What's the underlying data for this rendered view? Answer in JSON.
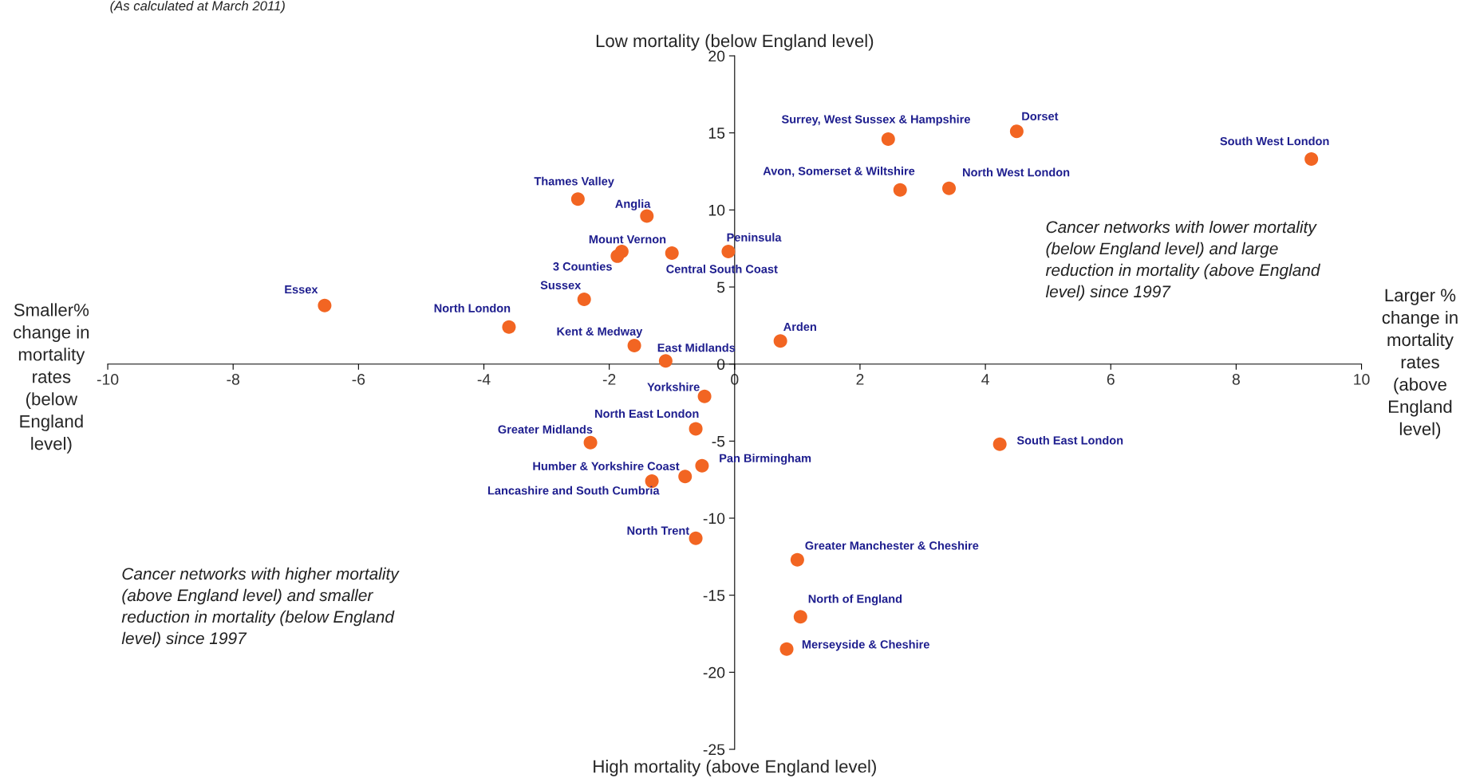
{
  "chart_data": {
    "type": "scatter",
    "title": "Low mortality (below England level)",
    "xlabel": "High mortality (above England level)",
    "ylabel": "Smaller% change in mortality rates (below England level)",
    "xlim": [
      -10,
      10
    ],
    "ylim": [
      -25,
      20
    ],
    "xticks": [
      -10,
      -8,
      -6,
      -4,
      -2,
      0,
      2,
      4,
      6,
      8,
      10
    ],
    "yticks": [
      -25,
      -20,
      -15,
      -10,
      -5,
      0,
      5,
      10,
      15,
      20
    ],
    "grid": false,
    "legend": false,
    "marker": "circle",
    "series": [
      {
        "name": "Essex",
        "color": "#f26522",
        "x": [
          -6.54
        ],
        "values": [
          3.8
        ]
      },
      {
        "name": "North London",
        "color": "#f26522",
        "x": [
          -3.6
        ],
        "values": [
          2.4
        ]
      },
      {
        "name": "Thames Valley",
        "color": "#f26522",
        "x": [
          -2.5
        ],
        "values": [
          10.7
        ]
      },
      {
        "name": "Anglia",
        "color": "#f26522",
        "x": [
          -1.4
        ],
        "values": [
          9.6
        ]
      },
      {
        "name": "Mount Vernon",
        "color": "#f26522",
        "x": [
          -1.8
        ],
        "values": [
          7.3
        ]
      },
      {
        "name": "3 Counties",
        "color": "#f26522",
        "x": [
          -1.87
        ],
        "values": [
          7.0
        ]
      },
      {
        "name": "Central South Coast",
        "color": "#f26522",
        "x": [
          -1.0
        ],
        "values": [
          7.2
        ]
      },
      {
        "name": "Peninsula",
        "color": "#f26522",
        "x": [
          -0.1
        ],
        "values": [
          7.3
        ]
      },
      {
        "name": "Sussex",
        "color": "#f26522",
        "x": [
          -2.4
        ],
        "values": [
          4.2
        ]
      },
      {
        "name": "Kent & Medway",
        "color": "#f26522",
        "x": [
          -1.6
        ],
        "values": [
          1.2
        ]
      },
      {
        "name": "East Midlands",
        "color": "#f26522",
        "x": [
          -1.1
        ],
        "values": [
          0.2
        ]
      },
      {
        "name": "Arden",
        "color": "#f26522",
        "x": [
          0.73
        ],
        "values": [
          1.5
        ]
      },
      {
        "name": "Surrey, West Sussex & Hampshire",
        "color": "#f26522",
        "x": [
          2.45
        ],
        "values": [
          14.6
        ]
      },
      {
        "name": "Dorset",
        "color": "#f26522",
        "x": [
          4.5
        ],
        "values": [
          15.1
        ]
      },
      {
        "name": "South West London",
        "color": "#f26522",
        "x": [
          9.2
        ],
        "values": [
          13.3
        ]
      },
      {
        "name": "Avon, Somerset & Wiltshire",
        "color": "#f26522",
        "x": [
          2.64
        ],
        "values": [
          11.3
        ]
      },
      {
        "name": "North West London",
        "color": "#f26522",
        "x": [
          3.42
        ],
        "values": [
          11.4
        ]
      },
      {
        "name": "Yorkshire",
        "color": "#f26522",
        "x": [
          -0.48
        ],
        "values": [
          -2.1
        ]
      },
      {
        "name": "North East London",
        "color": "#f26522",
        "x": [
          -0.62
        ],
        "values": [
          -4.2
        ]
      },
      {
        "name": "Greater Midlands",
        "color": "#f26522",
        "x": [
          -2.3
        ],
        "values": [
          -5.1
        ]
      },
      {
        "name": "Pan Birmingham",
        "color": "#f26522",
        "x": [
          -0.52
        ],
        "values": [
          -6.6
        ]
      },
      {
        "name": "Humber & Yorkshire Coast",
        "color": "#f26522",
        "x": [
          -0.79
        ],
        "values": [
          -7.3
        ]
      },
      {
        "name": "Lancashire and South Cumbria",
        "color": "#f26522",
        "x": [
          -1.32
        ],
        "values": [
          -7.6
        ]
      },
      {
        "name": "North Trent",
        "color": "#f26522",
        "x": [
          -0.62
        ],
        "values": [
          -11.3
        ]
      },
      {
        "name": "Greater Manchester & Cheshire",
        "color": "#f26522",
        "x": [
          1.0
        ],
        "values": [
          -12.7
        ]
      },
      {
        "name": "North of England",
        "color": "#f26522",
        "x": [
          1.05
        ],
        "values": [
          -16.4
        ]
      },
      {
        "name": "Merseyside & Cheshire",
        "color": "#f26522",
        "x": [
          0.83
        ],
        "values": [
          -18.5
        ]
      },
      {
        "name": "South East London",
        "color": "#f26522",
        "x": [
          4.23
        ],
        "values": [
          -5.2
        ]
      }
    ],
    "annotations": [
      "(As calculated at March 2011)",
      "Cancer networks with lower mortality (below England level) and large reduction in mortality (above England level) since 1997",
      "Cancer networks with higher mortality (above England level) and smaller reduction in mortality (below England level) since 1997",
      "Larger % change in mortality rates (above England level)"
    ]
  }
}
